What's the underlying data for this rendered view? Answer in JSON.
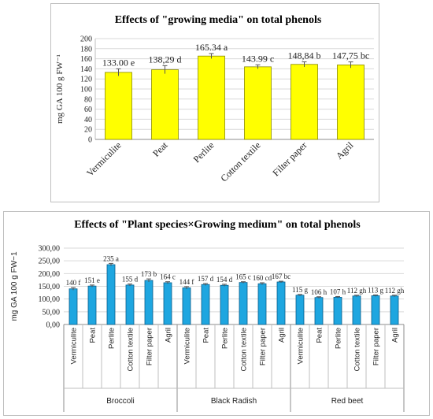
{
  "chart_data": [
    {
      "type": "bar",
      "title": "Effects of \"growing media\" on total phenols",
      "ylabel": "mg GA 100 g FW⁻¹",
      "ylim": [
        0,
        200
      ],
      "yticks": [
        0,
        20,
        40,
        60,
        80,
        100,
        120,
        140,
        160,
        180,
        200
      ],
      "yticks_labels": [
        "0",
        "20",
        "40",
        "60",
        "80",
        "100",
        "120",
        "140",
        "160",
        "180",
        "200"
      ],
      "categories": [
        "Vermiculite",
        "Peat",
        "Perlite",
        "Cotton textile",
        "Filter paper",
        "Agril"
      ],
      "values": [
        133.0,
        138.29,
        165.34,
        143.99,
        148.84,
        147.75
      ],
      "errors": [
        7,
        8,
        5,
        4,
        5,
        6
      ],
      "labels": [
        "133.00 e",
        "138,29  d",
        "165.34 a",
        "143.99 c",
        "148,84 b",
        "147,75 bc"
      ],
      "bar_color": "#ffff00",
      "bar_edge": "#8a8a00",
      "grid": true
    },
    {
      "type": "bar",
      "title": "Effects of \"Plant species×Growing medium\" on total phenols",
      "ylabel": "mg GA 100 g FW−1",
      "ylim": [
        0,
        300
      ],
      "yticks": [
        0,
        50,
        100,
        150,
        200,
        250,
        300
      ],
      "yticks_labels": [
        "0,00",
        "50,00",
        "100,00",
        "150,00",
        "200,00",
        "250,00",
        "300,00"
      ],
      "categories": [
        "Vermiculite",
        "Peat",
        "Perlite",
        "Cotton textile",
        "Filter paper",
        "Agril",
        "Vermiculite",
        "Peat",
        "Perlite",
        "Cotton textile",
        "Filter paper",
        "Agril",
        "Vermiculite",
        "Peat",
        "Perlite",
        "Cotton textile",
        "Filter paper",
        "Agril"
      ],
      "groups": [
        "Broccoli",
        "Black Radish",
        "Red beet"
      ],
      "values": [
        140,
        151,
        235,
        155,
        173,
        164,
        144,
        157,
        154,
        165,
        160,
        167,
        115,
        106,
        107,
        112,
        113,
        112
      ],
      "errors": [
        5,
        4,
        5,
        4,
        6,
        4,
        5,
        4,
        4,
        3,
        4,
        3,
        3,
        3,
        3,
        3,
        3,
        3
      ],
      "labels": [
        "140 f",
        "151 e",
        "235 a",
        "155 d",
        "173 b",
        "164 c",
        "144 f",
        "157 d",
        "154 d",
        "165 c",
        "160 cd",
        "167 bc",
        "115 g",
        "106 h",
        "107 h",
        "112 gh",
        "113 g",
        "112 gh"
      ],
      "bar_color": "#1ea6e0",
      "bar_edge": "#0b5e8a",
      "grid": true
    }
  ]
}
